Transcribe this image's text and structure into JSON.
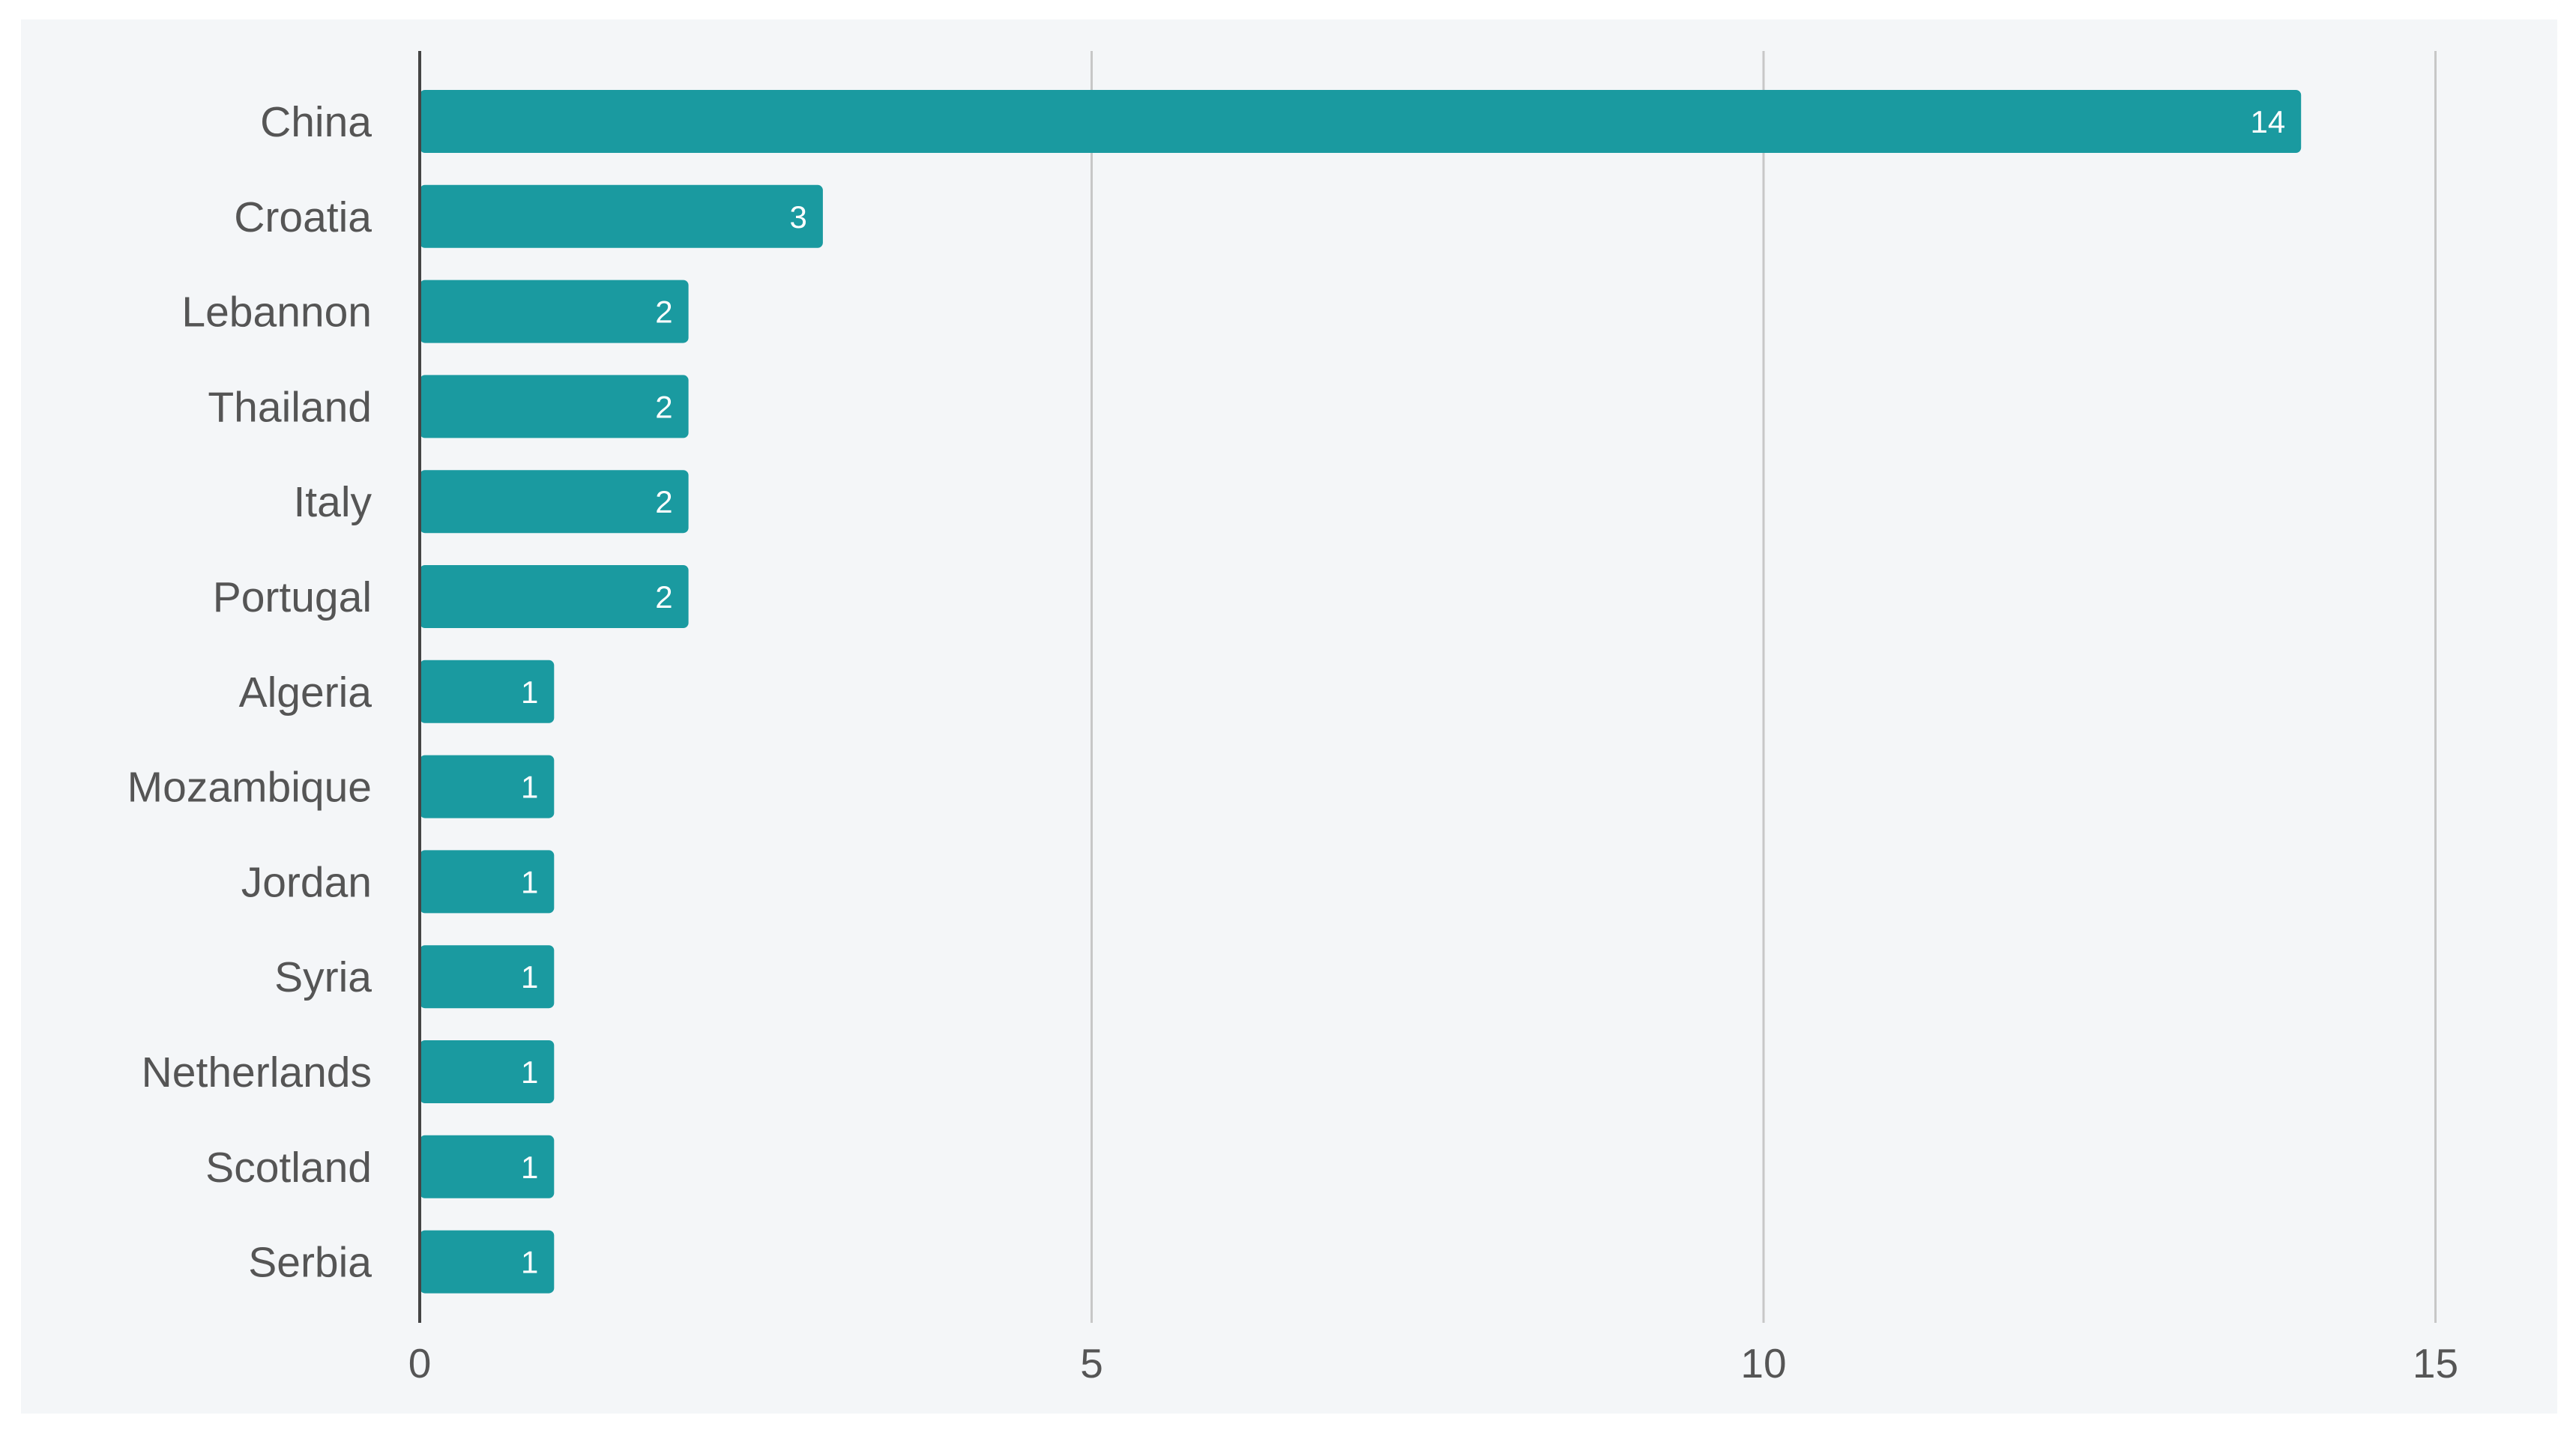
{
  "chart_data": {
    "type": "bar",
    "orientation": "horizontal",
    "categories": [
      "China",
      "Croatia",
      "Lebannon",
      "Thailand",
      "Italy",
      "Portugal",
      "Algeria",
      "Mozambique",
      "Jordan",
      "Syria",
      "Netherlands",
      "Scotland",
      "Serbia"
    ],
    "values": [
      14,
      3,
      2,
      2,
      2,
      2,
      1,
      1,
      1,
      1,
      1,
      1,
      1
    ],
    "xlim": [
      0,
      15
    ],
    "xticks": [
      0,
      5,
      10,
      15
    ],
    "grid": "vertical",
    "data_labels": "inside-end",
    "legend": "none"
  },
  "colors": {
    "bar": "#1a9aa0",
    "background": "#f4f6f8",
    "grid": "#c7c7c7",
    "axis": "#444444",
    "text": "#555555",
    "value_text": "#ffffff"
  }
}
